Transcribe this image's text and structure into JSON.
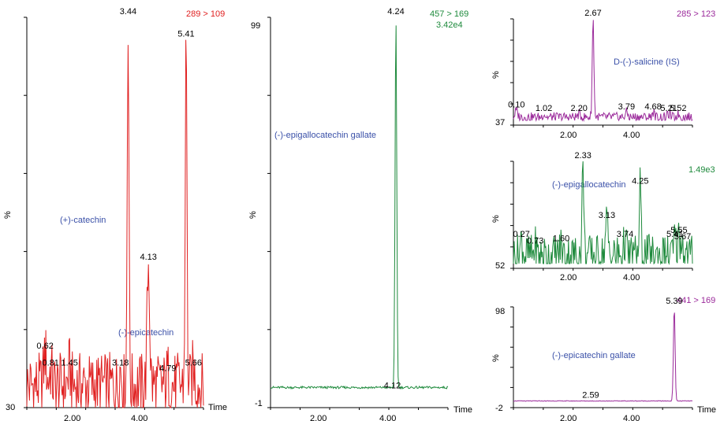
{
  "chart_data": [
    {
      "type": "line",
      "panel": "left",
      "transition": "289 > 109",
      "color": "#e02020",
      "y_top_label": "",
      "y_bottom_label": "30",
      "y_axis_label": "%",
      "x_axis_label": "Time",
      "x_ticks": [
        "2.00",
        "4.00"
      ],
      "xlim": [
        0,
        6.0
      ],
      "ylim": [
        30,
        100
      ],
      "peaks": [
        {
          "x": 0.62,
          "y": 40,
          "label": "0.62"
        },
        {
          "x": 0.81,
          "y": 37,
          "label": "0.81"
        },
        {
          "x": 1.45,
          "y": 37,
          "label": "1.45"
        },
        {
          "x": 3.18,
          "y": 37,
          "label": "3.18"
        },
        {
          "x": 3.44,
          "y": 100,
          "label": "3.44"
        },
        {
          "x": 4.13,
          "y": 56,
          "label": "4.13"
        },
        {
          "x": 4.79,
          "y": 36,
          "label": "4.79"
        },
        {
          "x": 5.41,
          "y": 96,
          "label": "5.41"
        },
        {
          "x": 5.66,
          "y": 37,
          "label": "5.66"
        }
      ],
      "compound_labels": [
        "(+)-catechin",
        "(-)-epicatechin"
      ]
    },
    {
      "type": "line",
      "panel": "center",
      "transition": "457 > 169",
      "intensity": "3.42e4",
      "color": "#1e8a3c",
      "y_top_label": "99",
      "y_bottom_label": "-1",
      "y_mid_label": "%",
      "x_axis_label": "Time",
      "x_ticks": [
        "2.00",
        "4.00"
      ],
      "xlim": [
        0,
        6.0
      ],
      "ylim": [
        -1,
        99
      ],
      "peaks": [
        {
          "x": 4.12,
          "y": 2,
          "label": "4.12"
        },
        {
          "x": 4.24,
          "y": 99,
          "label": "4.24"
        }
      ],
      "compound_labels": [
        "(-)-epigallocatechin gallate"
      ]
    },
    {
      "type": "line",
      "panel": "right-top",
      "transition": "285 > 123",
      "color": "#9b2a9b",
      "y_bottom_label": "37",
      "y_axis_label": "%",
      "x_ticks": [
        "2.00",
        "4.00"
      ],
      "xlim": [
        0,
        6.0
      ],
      "ylim": [
        37,
        100
      ],
      "peaks": [
        {
          "x": 0.1,
          "y": 43,
          "label": "0.10"
        },
        {
          "x": 1.02,
          "y": 41,
          "label": "1.02"
        },
        {
          "x": 2.2,
          "y": 41,
          "label": "2.20"
        },
        {
          "x": 2.67,
          "y": 100,
          "label": "2.67"
        },
        {
          "x": 3.79,
          "y": 42,
          "label": "3.79"
        },
        {
          "x": 4.68,
          "y": 42,
          "label": "4.68"
        },
        {
          "x": 5.21,
          "y": 41,
          "label": "5.21"
        },
        {
          "x": 5.52,
          "y": 41,
          "label": "5.52"
        }
      ],
      "compound_labels": [
        "D-(-)-salicine (IS)"
      ]
    },
    {
      "type": "line",
      "panel": "right-middle",
      "intensity": "1.49e3",
      "color": "#1e8a3c",
      "y_bottom_label": "52",
      "y_axis_label": "%",
      "x_ticks": [
        "2.00",
        "4.00"
      ],
      "xlim": [
        0,
        6.0
      ],
      "ylim": [
        52,
        100
      ],
      "peaks": [
        {
          "x": 0.27,
          "y": 63,
          "label": "0.27"
        },
        {
          "x": 0.73,
          "y": 60,
          "label": "0.73"
        },
        {
          "x": 1.6,
          "y": 61,
          "label": "1.60"
        },
        {
          "x": 2.33,
          "y": 100,
          "label": "2.33"
        },
        {
          "x": 3.13,
          "y": 72,
          "label": "3.13"
        },
        {
          "x": 3.74,
          "y": 63,
          "label": "3.74"
        },
        {
          "x": 4.25,
          "y": 88,
          "label": "4.25"
        },
        {
          "x": 5.41,
          "y": 63,
          "label": "5.41"
        },
        {
          "x": 5.55,
          "y": 65,
          "label": "5.55"
        },
        {
          "x": 5.67,
          "y": 62,
          "label": "5.67"
        }
      ],
      "compound_labels": [
        "(-)-epigallocatechin"
      ]
    },
    {
      "type": "line",
      "panel": "right-bottom",
      "transition": "441 > 169",
      "color": "#9b2a9b",
      "y_top_label": "98",
      "y_bottom_label": "-2",
      "y_axis_label": "%",
      "x_axis_label": "Time",
      "x_ticks": [
        "2.00",
        "4.00"
      ],
      "xlim": [
        0,
        6.0
      ],
      "ylim": [
        -2,
        98
      ],
      "peaks": [
        {
          "x": 2.59,
          "y": 0,
          "label": "2.59"
        },
        {
          "x": 5.39,
          "y": 98,
          "label": "5.39"
        }
      ],
      "compound_labels": [
        "(-)-epicatechin gallate"
      ]
    }
  ]
}
